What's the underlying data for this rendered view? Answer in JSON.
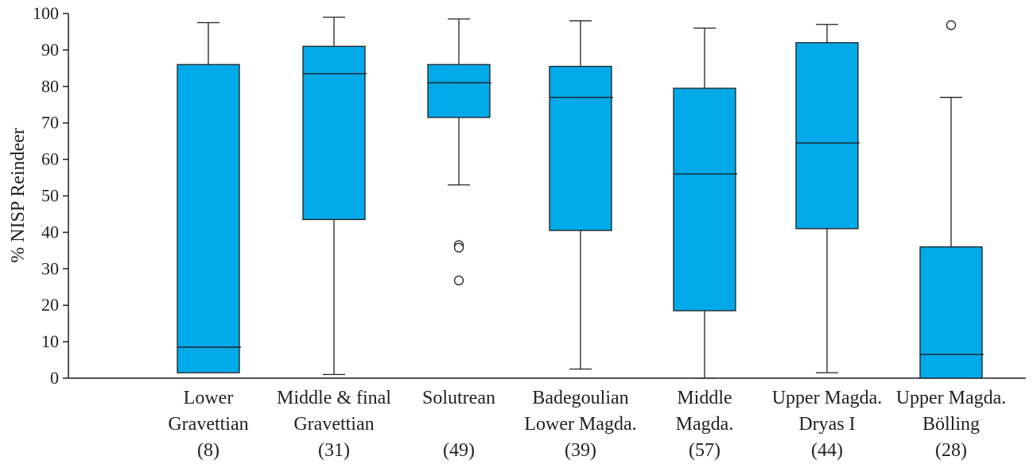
{
  "chart_data": {
    "type": "boxplot",
    "ylabel": "% NISP Reindeer",
    "ylim": [
      0,
      100
    ],
    "yticks": [
      0,
      10,
      20,
      30,
      40,
      50,
      60,
      70,
      80,
      90,
      100
    ],
    "box_color": "#00a9e8",
    "categories": [
      {
        "lines": [
          "Lower",
          "Gravettian",
          "(8)"
        ]
      },
      {
        "lines": [
          "Middle & final",
          "Gravettian",
          "(31)"
        ]
      },
      {
        "lines": [
          "Solutrean",
          "",
          "(49)"
        ]
      },
      {
        "lines": [
          "Badegoulian",
          "Lower Magda.",
          "(39)"
        ]
      },
      {
        "lines": [
          "Middle",
          "Magda.",
          "(57)"
        ]
      },
      {
        "lines": [
          "Upper Magda.",
          "Dryas I",
          "(44)"
        ]
      },
      {
        "lines": [
          "Upper Magda.",
          "Bölling",
          "(28)"
        ]
      }
    ],
    "boxes": [
      {
        "whisker_low": 1.5,
        "q1": 1.5,
        "median": 8.5,
        "q3": 86,
        "whisker_high": 97.5,
        "outliers": []
      },
      {
        "whisker_low": 1,
        "q1": 43.5,
        "median": 83.5,
        "q3": 91,
        "whisker_high": 99,
        "outliers": []
      },
      {
        "whisker_low": 53,
        "q1": 71.5,
        "median": 81,
        "q3": 86,
        "whisker_high": 98.5,
        "outliers": [
          36.5,
          35.8,
          26.8
        ]
      },
      {
        "whisker_low": 2.5,
        "q1": 40.5,
        "median": 77,
        "q3": 85.5,
        "whisker_high": 98,
        "outliers": []
      },
      {
        "whisker_low": 0,
        "q1": 18.5,
        "median": 56,
        "q3": 79.5,
        "whisker_high": 96,
        "outliers": []
      },
      {
        "whisker_low": 1.5,
        "q1": 41,
        "median": 64.5,
        "q3": 92,
        "whisker_high": 97,
        "outliers": []
      },
      {
        "whisker_low": 0,
        "q1": 0,
        "median": 6.5,
        "q3": 36,
        "whisker_high": 77,
        "outliers": [
          96.8
        ]
      }
    ]
  }
}
